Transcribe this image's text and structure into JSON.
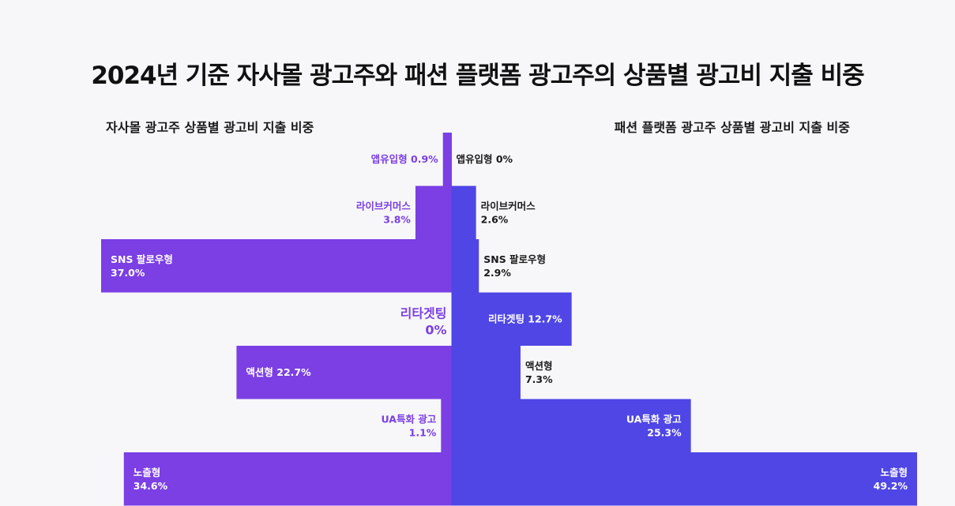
{
  "chart_data": {
    "type": "bar",
    "title": "2024년 기준 자사몰 광고주와 패션 플랫폼 광고주의 상품별 광고비 지출 비중",
    "categories": [
      "앱유입형",
      "라이브커머스",
      "SNS 팔로우형",
      "리타겟팅",
      "액션형",
      "UA특화 광고",
      "노출형"
    ],
    "series": [
      {
        "name": "자사몰 광고주 상품별 광고비 지출 비중",
        "values": [
          0.9,
          3.8,
          37.0,
          0,
          22.7,
          1.1,
          34.6
        ],
        "labels": [
          "0.9%",
          "3.8%",
          "37.0%",
          "0%",
          "22.7%",
          "1.1%",
          "34.6%"
        ],
        "color": "#7b3fe4"
      },
      {
        "name": "패션 플랫폼 광고주 상품별 광고비 지출 비중",
        "values": [
          0,
          2.6,
          2.9,
          12.7,
          7.3,
          25.3,
          49.2
        ],
        "labels": [
          "0%",
          "2.6%",
          "2.9%",
          "12.7%",
          "7.3%",
          "25.3%",
          "49.2%"
        ],
        "color": "#4f46e5"
      }
    ],
    "left_label_color": "#7b3fe4",
    "right_label_color": "#1a1a1a"
  }
}
